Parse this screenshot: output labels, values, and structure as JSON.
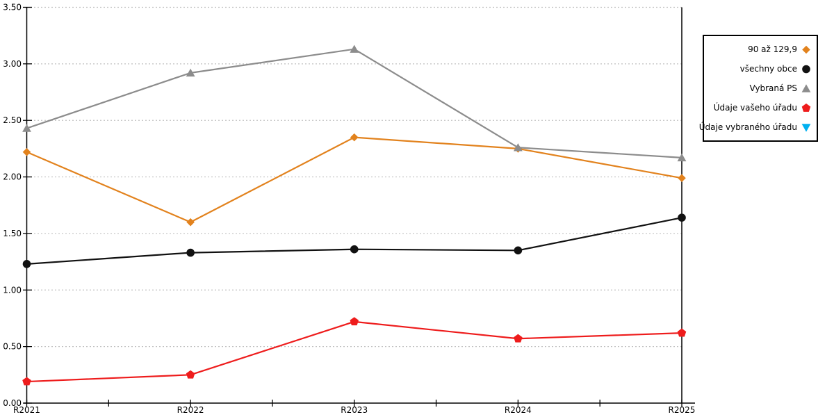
{
  "chart_data": {
    "type": "line",
    "title": "",
    "xlabel": "",
    "ylabel": "",
    "categories": [
      "R2021",
      "R2022",
      "R2023",
      "R2024",
      "R2025"
    ],
    "series": [
      {
        "name": "90 až 129,9",
        "marker": "diamond",
        "color": "#E2821D",
        "values": [
          2.22,
          1.6,
          2.35,
          2.25,
          1.99
        ]
      },
      {
        "name": "všechny obce",
        "marker": "circle",
        "color": "#111111",
        "values": [
          1.23,
          1.33,
          1.36,
          1.35,
          1.64
        ]
      },
      {
        "name": "Vybraná PS",
        "marker": "triangle-up",
        "color": "#8C8C8C",
        "values": [
          2.43,
          2.92,
          3.13,
          2.26,
          2.17
        ]
      },
      {
        "name": "Údaje vašeho úřadu",
        "marker": "pentagon",
        "color": "#EE1C1C",
        "values": [
          0.19,
          0.25,
          0.72,
          0.57,
          0.62
        ]
      },
      {
        "name": "Údaje vybraného úřadu",
        "marker": "triangle-down",
        "color": "#00B0F0",
        "values": []
      }
    ],
    "ylim": [
      0,
      3.5
    ],
    "ytick_step": 0.5,
    "ytick_labels": [
      "0.00",
      "0.50",
      "1.00",
      "1.50",
      "2.00",
      "2.50",
      "3.00",
      "3.50"
    ],
    "grid": "horizontal-dotted",
    "grid_color": "#C0C0C0",
    "axis_color": "#000000",
    "legend_position": "top-right"
  }
}
